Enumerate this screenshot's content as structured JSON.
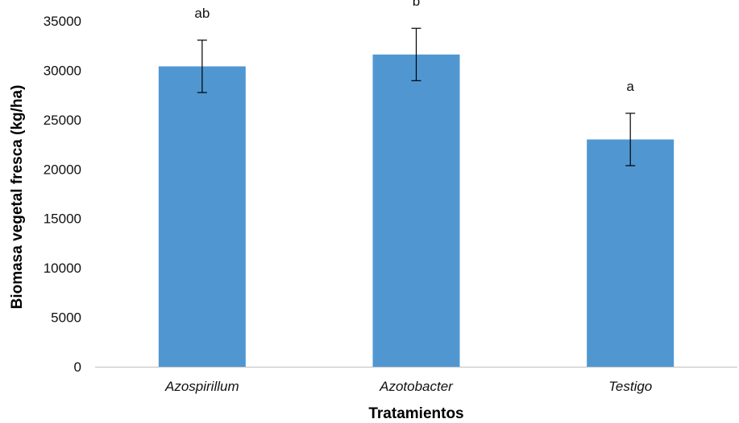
{
  "chart_data": {
    "type": "bar",
    "title": "",
    "xlabel": "Tratamientos",
    "ylabel": "Biomasa vegetal fresca (kg/ha)",
    "ylim": [
      0,
      35000
    ],
    "yticks": [
      0,
      5000,
      10000,
      15000,
      20000,
      25000,
      30000,
      35000
    ],
    "ytick_labels": [
      "0",
      "5000",
      "10000",
      "15000",
      "20000",
      "25000",
      "30000",
      "35000"
    ],
    "categories": [
      "Azospirillum",
      "Azotobacter",
      "Testigo"
    ],
    "values": [
      30400,
      31600,
      23000
    ],
    "error": [
      2650,
      2650,
      2650
    ],
    "significance_labels": [
      "ab",
      "b",
      "a"
    ],
    "bar_color": "#5097d2",
    "grid": false,
    "legend": "none"
  }
}
